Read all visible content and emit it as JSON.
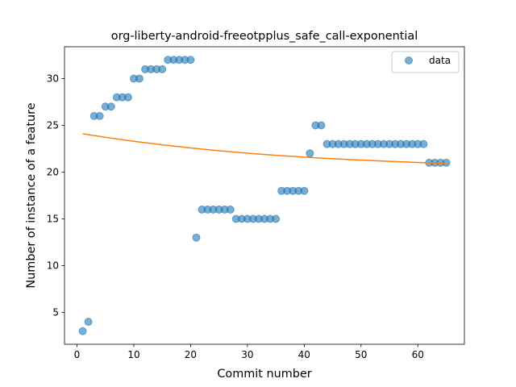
{
  "chart_data": {
    "type": "scatter",
    "title": "org-liberty-android-freeotpplus_safe_call-exponential",
    "xlabel": "Commit number",
    "ylabel": "Number of instance of a feature",
    "xlim": [
      -2.2,
      68.2
    ],
    "ylim": [
      1.6,
      33.4
    ],
    "xticks": [
      0,
      10,
      20,
      30,
      40,
      50,
      60
    ],
    "yticks": [
      5,
      10,
      15,
      20,
      25,
      30
    ],
    "grid": false,
    "legend_position": "top-right",
    "series": [
      {
        "name": "data",
        "kind": "scatter",
        "color": "#1f77b4",
        "x": [
          1,
          2,
          3,
          4,
          5,
          6,
          7,
          8,
          9,
          10,
          11,
          12,
          13,
          14,
          15,
          16,
          17,
          18,
          19,
          20,
          21,
          22,
          23,
          24,
          25,
          26,
          27,
          28,
          29,
          30,
          31,
          32,
          33,
          34,
          35,
          36,
          37,
          38,
          39,
          40,
          41,
          42,
          43,
          44,
          45,
          46,
          47,
          48,
          49,
          50,
          51,
          52,
          53,
          54,
          55,
          56,
          57,
          58,
          59,
          60,
          61,
          62,
          63,
          64,
          65
        ],
        "y": [
          3,
          4,
          26,
          26,
          27,
          27,
          28,
          28,
          28,
          30,
          30,
          31,
          31,
          31,
          31,
          32,
          32,
          32,
          32,
          32,
          13,
          16,
          16,
          16,
          16,
          16,
          16,
          15,
          15,
          15,
          15,
          15,
          15,
          15,
          15,
          18,
          18,
          18,
          18,
          18,
          22,
          25,
          25,
          23,
          23,
          23,
          23,
          23,
          23,
          23,
          23,
          23,
          23,
          23,
          23,
          23,
          23,
          23,
          23,
          23,
          23,
          21,
          21,
          21,
          21
        ]
      },
      {
        "kind": "line",
        "color": "#ff7f0e",
        "x": [
          1,
          5,
          10,
          15,
          20,
          25,
          30,
          35,
          40,
          45,
          50,
          55,
          60,
          65
        ],
        "y": [
          24.1,
          23.72,
          23.3,
          22.92,
          22.58,
          22.28,
          22.02,
          21.8,
          21.6,
          21.43,
          21.28,
          21.15,
          21.03,
          20.93
        ]
      }
    ]
  }
}
